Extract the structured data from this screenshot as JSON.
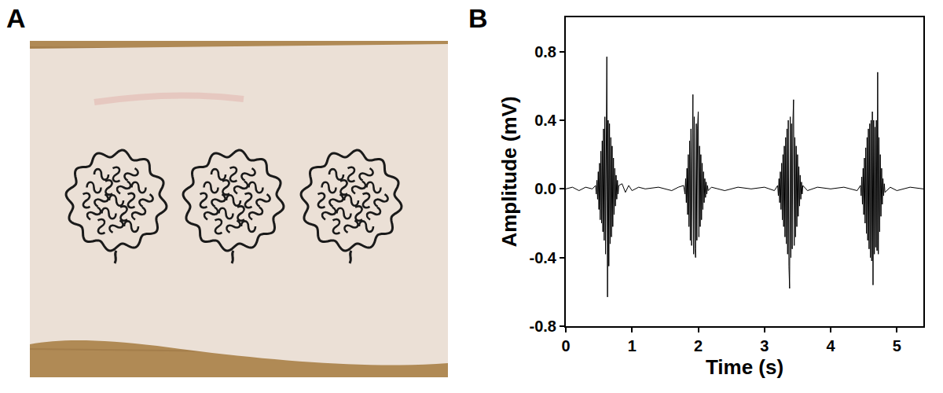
{
  "panel_labels": [
    "A",
    "B"
  ],
  "chart_data": {
    "type": "line",
    "xlabel": "Time (s)",
    "ylabel": "Amplitude (mV)",
    "color": "#000000",
    "grid": false,
    "xlim": [
      0,
      5.4
    ],
    "ylim": [
      -0.8,
      1.0
    ],
    "xticks": [
      0,
      1,
      2,
      3,
      4,
      5
    ],
    "yticks": [
      -0.8,
      -0.4,
      {
        "value": 0,
        "label": "0.0"
      },
      0.4,
      0.8
    ],
    "x": [
      0,
      0.1,
      0.2,
      0.3,
      0.4,
      0.45,
      0.46,
      0.47,
      0.48,
      0.49,
      0.5,
      0.51,
      0.52,
      0.53,
      0.54,
      0.55,
      0.56,
      0.57,
      0.58,
      0.59,
      0.6,
      0.61,
      0.62,
      0.63,
      0.64,
      0.65,
      0.66,
      0.67,
      0.68,
      0.69,
      0.7,
      0.71,
      0.72,
      0.73,
      0.74,
      0.75,
      0.76,
      0.77,
      0.78,
      0.79,
      0.8,
      0.85,
      0.9,
      0.95,
      1.0,
      1.1,
      1.2,
      1.4,
      1.6,
      1.7,
      1.78,
      1.8,
      1.81,
      1.82,
      1.83,
      1.84,
      1.85,
      1.86,
      1.87,
      1.88,
      1.89,
      1.9,
      1.91,
      1.92,
      1.93,
      1.94,
      1.95,
      1.96,
      1.97,
      1.98,
      1.99,
      2.0,
      2.01,
      2.02,
      2.03,
      2.04,
      2.05,
      2.06,
      2.07,
      2.08,
      2.09,
      2.1,
      2.11,
      2.12,
      2.13,
      2.14,
      2.15,
      2.2,
      2.4,
      2.6,
      2.8,
      3.0,
      3.15,
      3.2,
      3.21,
      3.22,
      3.23,
      3.24,
      3.25,
      3.26,
      3.27,
      3.28,
      3.29,
      3.3,
      3.31,
      3.32,
      3.33,
      3.34,
      3.35,
      3.36,
      3.37,
      3.38,
      3.39,
      3.4,
      3.41,
      3.42,
      3.43,
      3.44,
      3.45,
      3.46,
      3.47,
      3.48,
      3.49,
      3.5,
      3.51,
      3.52,
      3.53,
      3.54,
      3.55,
      3.56,
      3.57,
      3.58,
      3.65,
      3.8,
      4.0,
      4.2,
      4.4,
      4.45,
      4.46,
      4.47,
      4.48,
      4.49,
      4.5,
      4.51,
      4.52,
      4.53,
      4.54,
      4.55,
      4.56,
      4.57,
      4.58,
      4.59,
      4.6,
      4.61,
      4.62,
      4.63,
      4.64,
      4.65,
      4.66,
      4.67,
      4.68,
      4.69,
      4.7,
      4.71,
      4.72,
      4.73,
      4.74,
      4.75,
      4.76,
      4.77,
      4.78,
      4.79,
      4.8,
      4.81,
      4.82,
      4.9,
      5.0,
      5.2,
      5.4
    ],
    "values": [
      0,
      0.01,
      -0.01,
      0.01,
      0,
      0.02,
      -0.03,
      0.05,
      -0.06,
      0.1,
      -0.12,
      0.15,
      -0.18,
      0.22,
      -0.2,
      0.28,
      -0.25,
      0.35,
      -0.3,
      0.42,
      -0.38,
      0.45,
      0.77,
      -0.63,
      0.4,
      -0.45,
      0.38,
      -0.32,
      0.3,
      -0.28,
      0.25,
      -0.22,
      0.18,
      -0.15,
      0.12,
      -0.1,
      0.08,
      -0.06,
      0.05,
      -0.03,
      0.02,
      0.03,
      -0.02,
      0.02,
      -0.01,
      0.01,
      0,
      0.01,
      -0.01,
      0.01,
      0.02,
      -0.03,
      0.06,
      -0.08,
      0.12,
      -0.15,
      0.2,
      -0.22,
      0.28,
      -0.3,
      0.35,
      -0.33,
      0.4,
      0.55,
      -0.38,
      0.42,
      -0.35,
      -0.4,
      0.38,
      -0.3,
      0.35,
      0.45,
      -0.28,
      0.25,
      -0.22,
      0.2,
      -0.18,
      0.15,
      -0.12,
      0.1,
      -0.08,
      0.06,
      -0.05,
      0.04,
      -0.03,
      0.02,
      -0.01,
      0.01,
      -0.01,
      0.01,
      0,
      0.01,
      -0.01,
      0.02,
      -0.04,
      0.06,
      -0.08,
      0.1,
      -0.12,
      0.15,
      -0.18,
      0.2,
      -0.22,
      0.25,
      -0.28,
      0.3,
      -0.32,
      0.35,
      -0.38,
      0.4,
      -0.45,
      -0.58,
      0.42,
      -0.4,
      0.38,
      -0.35,
      0.4,
      0.52,
      -0.33,
      0.3,
      -0.28,
      0.25,
      -0.22,
      0.2,
      -0.16,
      0.13,
      -0.1,
      0.08,
      -0.06,
      0.04,
      -0.03,
      0.02,
      -0.01,
      0.01,
      0,
      0.01,
      -0.01,
      0.02,
      -0.04,
      0.07,
      -0.09,
      0.12,
      -0.15,
      0.18,
      -0.2,
      0.24,
      -0.26,
      0.3,
      -0.3,
      0.35,
      -0.35,
      0.38,
      -0.4,
      0.4,
      -0.42,
      0.45,
      -0.56,
      0.4,
      -0.38,
      0.36,
      -0.34,
      0.4,
      -0.36,
      0.68,
      -0.38,
      0.3,
      -0.25,
      0.2,
      -0.16,
      0.12,
      -0.09,
      0.06,
      -0.04,
      0.03,
      -0.02,
      0.01,
      -0.01,
      0.01,
      0
    ]
  }
}
